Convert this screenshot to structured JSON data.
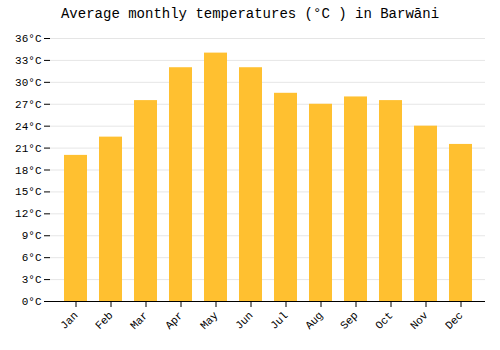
{
  "chart_data": {
    "type": "bar",
    "title": "Average monthly temperatures (°C ) in Barwāni",
    "categories": [
      "Jan",
      "Feb",
      "Mar",
      "Apr",
      "May",
      "Jun",
      "Jul",
      "Aug",
      "Sep",
      "Oct",
      "Nov",
      "Dec"
    ],
    "values": [
      20.0,
      22.5,
      27.5,
      32.0,
      34.0,
      32.0,
      28.5,
      27.0,
      28.0,
      27.5,
      24.0,
      21.5
    ],
    "color": "#FFC030",
    "ylim": [
      0,
      36
    ],
    "yticks": [
      {
        "value": 0,
        "label": "0°C"
      },
      {
        "value": 3,
        "label": "3°C"
      },
      {
        "value": 6,
        "label": "6°C"
      },
      {
        "value": 9,
        "label": "9°C"
      },
      {
        "value": 12,
        "label": "12°C"
      },
      {
        "value": 15,
        "label": "15°C"
      },
      {
        "value": 18,
        "label": "18°C"
      },
      {
        "value": 21,
        "label": "21°C"
      },
      {
        "value": 24,
        "label": "24°C"
      },
      {
        "value": 27,
        "label": "27°C"
      },
      {
        "value": 30,
        "label": "30°C"
      },
      {
        "value": 33,
        "label": "33°C"
      },
      {
        "value": 36,
        "label": "36°C"
      }
    ],
    "grid": true
  }
}
